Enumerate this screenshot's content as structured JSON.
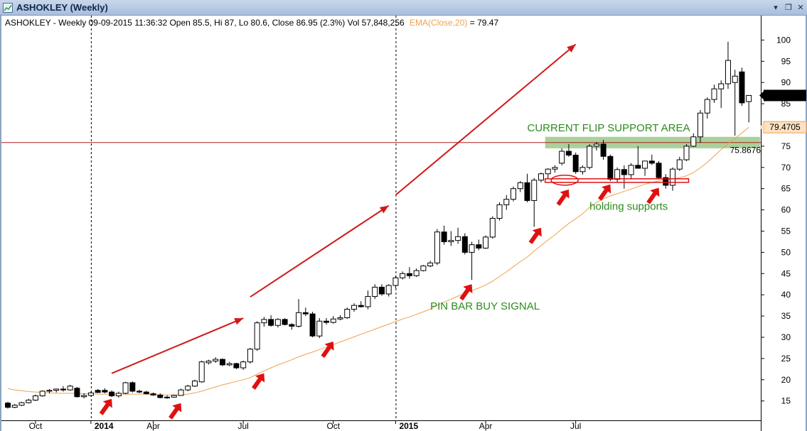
{
  "window": {
    "title": "ASHOKLEY (Weekly)"
  },
  "info_line": {
    "text": "ASHOKLEY - Weekly 09-09-2015 11:36:32 Open 85.5, Hi 87, Lo 80.6, Close 86.95 (2.3%) Vol 57,848,256",
    "ema_label": "EMA(Close,20)",
    "ema_value": " = 79.47"
  },
  "colors": {
    "up_candle": "#ffffff",
    "down_candle": "#000000",
    "ema": "#f0a050",
    "arrows": "#e01010",
    "trend_lines": "#d01818",
    "resistance_line": "#b02020",
    "support_zone": "#8fc07a",
    "annotation_text": "#2e8b1f"
  },
  "chart_data": {
    "type": "candlestick",
    "title": "ASHOKLEY (Weekly)",
    "ylim": [
      10,
      104
    ],
    "y_ticks": [
      15,
      20,
      25,
      30,
      35,
      40,
      45,
      50,
      55,
      60,
      65,
      70,
      75,
      80,
      85,
      90,
      95,
      100
    ],
    "x_ticks": [
      {
        "label": "Oct",
        "week": 4
      },
      {
        "label": "2014",
        "week": 12,
        "bold": true
      },
      {
        "label": "Apr",
        "week": 21
      },
      {
        "label": "Jul",
        "week": 34
      },
      {
        "label": "Oct",
        "week": 47
      },
      {
        "label": "2015",
        "week": 56,
        "bold": true
      },
      {
        "label": "Apr",
        "week": 69
      },
      {
        "label": "Jul",
        "week": 82
      }
    ],
    "year_separators": [
      12,
      56
    ],
    "candles": [
      {
        "o": 14.5,
        "h": 14.8,
        "l": 13.2,
        "c": 13.5
      },
      {
        "o": 13.5,
        "h": 14.3,
        "l": 13.3,
        "c": 14.0
      },
      {
        "o": 14.0,
        "h": 14.8,
        "l": 13.8,
        "c": 14.6
      },
      {
        "o": 14.6,
        "h": 15.5,
        "l": 14.4,
        "c": 15.2
      },
      {
        "o": 15.2,
        "h": 16.5,
        "l": 15.0,
        "c": 16.2
      },
      {
        "o": 16.2,
        "h": 17.5,
        "l": 16.0,
        "c": 17.3
      },
      {
        "o": 17.3,
        "h": 17.8,
        "l": 16.8,
        "c": 17.5
      },
      {
        "o": 17.5,
        "h": 17.9,
        "l": 17.0,
        "c": 17.8
      },
      {
        "o": 17.8,
        "h": 18.5,
        "l": 17.2,
        "c": 17.6
      },
      {
        "o": 17.6,
        "h": 18.8,
        "l": 17.4,
        "c": 18.5
      },
      {
        "o": 18.0,
        "h": 18.3,
        "l": 15.8,
        "c": 16.0
      },
      {
        "o": 16.0,
        "h": 16.8,
        "l": 15.6,
        "c": 16.3
      },
      {
        "o": 16.3,
        "h": 17.2,
        "l": 16.0,
        "c": 16.9
      },
      {
        "o": 17.5,
        "h": 17.8,
        "l": 16.9,
        "c": 17.0
      },
      {
        "o": 17.5,
        "h": 18.0,
        "l": 16.8,
        "c": 17.1
      },
      {
        "o": 17.1,
        "h": 17.5,
        "l": 15.9,
        "c": 16.2
      },
      {
        "o": 16.2,
        "h": 17.2,
        "l": 15.8,
        "c": 16.8
      },
      {
        "o": 16.8,
        "h": 19.5,
        "l": 16.6,
        "c": 19.3
      },
      {
        "o": 19.3,
        "h": 19.6,
        "l": 17.0,
        "c": 17.3
      },
      {
        "o": 17.3,
        "h": 17.6,
        "l": 16.8,
        "c": 17.1
      },
      {
        "o": 17.1,
        "h": 17.4,
        "l": 16.5,
        "c": 16.7
      },
      {
        "o": 16.7,
        "h": 17.0,
        "l": 16.2,
        "c": 16.4
      },
      {
        "o": 16.4,
        "h": 16.8,
        "l": 15.6,
        "c": 15.8
      },
      {
        "o": 15.8,
        "h": 16.3,
        "l": 15.5,
        "c": 15.9
      },
      {
        "o": 15.9,
        "h": 16.5,
        "l": 15.8,
        "c": 16.3
      },
      {
        "o": 16.3,
        "h": 17.9,
        "l": 16.2,
        "c": 17.6
      },
      {
        "o": 17.6,
        "h": 18.8,
        "l": 17.3,
        "c": 18.5
      },
      {
        "o": 18.5,
        "h": 20.0,
        "l": 18.3,
        "c": 19.7
      },
      {
        "o": 19.5,
        "h": 24.5,
        "l": 19.3,
        "c": 24.2
      },
      {
        "o": 24.0,
        "h": 24.7,
        "l": 23.6,
        "c": 24.4
      },
      {
        "o": 24.4,
        "h": 25.3,
        "l": 24.0,
        "c": 24.8
      },
      {
        "o": 24.8,
        "h": 25.0,
        "l": 23.2,
        "c": 23.5
      },
      {
        "o": 23.5,
        "h": 24.2,
        "l": 23.2,
        "c": 23.8
      },
      {
        "o": 23.8,
        "h": 24.0,
        "l": 22.5,
        "c": 22.8
      },
      {
        "o": 22.8,
        "h": 24.5,
        "l": 22.3,
        "c": 24.2
      },
      {
        "o": 24.2,
        "h": 27.5,
        "l": 23.8,
        "c": 27.2
      },
      {
        "o": 27.2,
        "h": 33.8,
        "l": 26.8,
        "c": 33.4
      },
      {
        "o": 33.4,
        "h": 34.8,
        "l": 32.5,
        "c": 34.2
      },
      {
        "o": 34.2,
        "h": 35.2,
        "l": 32.5,
        "c": 32.8
      },
      {
        "o": 32.8,
        "h": 34.5,
        "l": 32.3,
        "c": 34.2
      },
      {
        "o": 34.2,
        "h": 34.5,
        "l": 32.8,
        "c": 33.0
      },
      {
        "o": 33.0,
        "h": 33.3,
        "l": 31.8,
        "c": 32.6
      },
      {
        "o": 32.6,
        "h": 39.0,
        "l": 32.3,
        "c": 35.8
      },
      {
        "o": 35.8,
        "h": 37.0,
        "l": 35.0,
        "c": 35.5
      },
      {
        "o": 35.5,
        "h": 36.0,
        "l": 30.0,
        "c": 30.3
      },
      {
        "o": 30.3,
        "h": 34.5,
        "l": 29.8,
        "c": 33.8
      },
      {
        "o": 33.8,
        "h": 34.5,
        "l": 33.0,
        "c": 33.5
      },
      {
        "o": 33.5,
        "h": 35.0,
        "l": 33.2,
        "c": 34.3
      },
      {
        "o": 34.3,
        "h": 35.2,
        "l": 34.0,
        "c": 34.6
      },
      {
        "o": 34.6,
        "h": 37.0,
        "l": 34.3,
        "c": 36.6
      },
      {
        "o": 36.6,
        "h": 38.0,
        "l": 36.0,
        "c": 37.5
      },
      {
        "o": 37.5,
        "h": 38.5,
        "l": 37.0,
        "c": 37.2
      },
      {
        "o": 37.2,
        "h": 41.0,
        "l": 36.6,
        "c": 39.6
      },
      {
        "o": 39.6,
        "h": 42.5,
        "l": 39.0,
        "c": 41.8
      },
      {
        "o": 41.8,
        "h": 42.5,
        "l": 39.8,
        "c": 40.2
      },
      {
        "o": 40.2,
        "h": 42.5,
        "l": 39.6,
        "c": 42.2
      },
      {
        "o": 42.2,
        "h": 44.5,
        "l": 41.5,
        "c": 44.0
      },
      {
        "o": 44.0,
        "h": 45.5,
        "l": 43.6,
        "c": 45.0
      },
      {
        "o": 45.0,
        "h": 46.5,
        "l": 43.8,
        "c": 44.5
      },
      {
        "o": 44.5,
        "h": 46.2,
        "l": 44.2,
        "c": 45.7
      },
      {
        "o": 45.7,
        "h": 47.0,
        "l": 45.5,
        "c": 46.8
      },
      {
        "o": 46.8,
        "h": 48.0,
        "l": 46.5,
        "c": 47.5
      },
      {
        "o": 47.5,
        "h": 55.5,
        "l": 47.0,
        "c": 54.8
      },
      {
        "o": 54.8,
        "h": 56.3,
        "l": 51.8,
        "c": 52.5
      },
      {
        "o": 52.5,
        "h": 55.0,
        "l": 51.5,
        "c": 52.8
      },
      {
        "o": 52.8,
        "h": 55.8,
        "l": 52.0,
        "c": 53.7
      },
      {
        "o": 53.7,
        "h": 54.5,
        "l": 49.5,
        "c": 50.0
      },
      {
        "o": 50.0,
        "h": 52.5,
        "l": 43.5,
        "c": 51.8
      },
      {
        "o": 51.8,
        "h": 53.0,
        "l": 50.5,
        "c": 51.0
      },
      {
        "o": 51.0,
        "h": 54.0,
        "l": 50.8,
        "c": 53.6
      },
      {
        "o": 53.6,
        "h": 58.5,
        "l": 53.2,
        "c": 58.0
      },
      {
        "o": 58.0,
        "h": 61.8,
        "l": 57.5,
        "c": 61.2
      },
      {
        "o": 61.2,
        "h": 63.5,
        "l": 60.0,
        "c": 62.5
      },
      {
        "o": 62.5,
        "h": 65.5,
        "l": 62.0,
        "c": 65.0
      },
      {
        "o": 65.0,
        "h": 66.8,
        "l": 64.2,
        "c": 66.4
      },
      {
        "o": 66.4,
        "h": 68.5,
        "l": 61.8,
        "c": 62.2
      },
      {
        "o": 62.2,
        "h": 67.5,
        "l": 56.0,
        "c": 67.0
      },
      {
        "o": 67.0,
        "h": 68.8,
        "l": 66.5,
        "c": 68.5
      },
      {
        "o": 68.5,
        "h": 69.8,
        "l": 67.2,
        "c": 69.6
      },
      {
        "o": 69.6,
        "h": 70.5,
        "l": 68.8,
        "c": 70.0
      },
      {
        "o": 71.0,
        "h": 74.5,
        "l": 70.5,
        "c": 73.8
      },
      {
        "o": 73.8,
        "h": 75.5,
        "l": 72.5,
        "c": 72.9
      },
      {
        "o": 72.9,
        "h": 73.5,
        "l": 68.5,
        "c": 69.0
      },
      {
        "o": 69.0,
        "h": 70.5,
        "l": 68.3,
        "c": 70.0
      },
      {
        "o": 70.0,
        "h": 75.5,
        "l": 69.5,
        "c": 75.0
      },
      {
        "o": 75.0,
        "h": 76.0,
        "l": 74.0,
        "c": 75.5
      },
      {
        "o": 75.5,
        "h": 76.5,
        "l": 71.8,
        "c": 72.6
      },
      {
        "o": 72.6,
        "h": 73.0,
        "l": 66.8,
        "c": 67.2
      },
      {
        "o": 67.2,
        "h": 70.0,
        "l": 66.5,
        "c": 69.5
      },
      {
        "o": 69.5,
        "h": 70.5,
        "l": 65.0,
        "c": 68.3
      },
      {
        "o": 68.3,
        "h": 71.0,
        "l": 67.2,
        "c": 70.5
      },
      {
        "o": 70.5,
        "h": 75.0,
        "l": 70.0,
        "c": 69.8
      },
      {
        "o": 69.8,
        "h": 71.0,
        "l": 68.0,
        "c": 71.5
      },
      {
        "o": 71.5,
        "h": 73.0,
        "l": 70.6,
        "c": 71.0
      },
      {
        "o": 71.0,
        "h": 71.5,
        "l": 67.2,
        "c": 67.6
      },
      {
        "o": 67.6,
        "h": 68.4,
        "l": 65.0,
        "c": 65.8
      },
      {
        "o": 65.8,
        "h": 70.0,
        "l": 64.5,
        "c": 69.6
      },
      {
        "o": 69.6,
        "h": 72.5,
        "l": 69.2,
        "c": 71.8
      },
      {
        "o": 71.8,
        "h": 75.5,
        "l": 71.5,
        "c": 75.0
      },
      {
        "o": 75.0,
        "h": 78.0,
        "l": 74.8,
        "c": 77.2
      },
      {
        "o": 77.2,
        "h": 83.5,
        "l": 75.8,
        "c": 82.8
      },
      {
        "o": 82.8,
        "h": 86.5,
        "l": 81.5,
        "c": 86.0
      },
      {
        "o": 86.0,
        "h": 89.5,
        "l": 85.2,
        "c": 88.5
      },
      {
        "o": 88.5,
        "h": 90.5,
        "l": 84.0,
        "c": 89.7
      },
      {
        "o": 89.7,
        "h": 99.6,
        "l": 88.5,
        "c": 95.2
      },
      {
        "o": 90.0,
        "h": 93.0,
        "l": 77.5,
        "c": 91.5
      },
      {
        "o": 92.5,
        "h": 93.5,
        "l": 84.5,
        "c": 85.2
      },
      {
        "o": 85.5,
        "h": 87.0,
        "l": 80.6,
        "c": 86.95
      }
    ],
    "ema": {
      "name": "EMA(Close,20)",
      "values": [
        17.9,
        17.6,
        17.4,
        17.2,
        17.1,
        17.0,
        16.9,
        16.8,
        16.8,
        16.8,
        16.8,
        16.7,
        16.7,
        16.6,
        16.6,
        16.6,
        16.6,
        16.6,
        16.6,
        16.6,
        16.6,
        16.5,
        16.4,
        16.4,
        16.4,
        16.4,
        16.6,
        16.9,
        17.3,
        17.8,
        18.3,
        18.8,
        19.2,
        19.6,
        20.0,
        20.5,
        21.3,
        22.1,
        22.8,
        23.5,
        24.1,
        24.7,
        25.4,
        26.0,
        26.5,
        27.1,
        27.7,
        28.3,
        28.9,
        29.5,
        30.1,
        30.7,
        31.3,
        31.9,
        32.5,
        33.1,
        33.7,
        34.3,
        34.8,
        35.4,
        36.0,
        36.6,
        37.5,
        38.3,
        39.0,
        39.7,
        40.3,
        41.0,
        41.6,
        42.3,
        43.2,
        44.3,
        45.4,
        46.6,
        47.8,
        48.9,
        50.3,
        51.6,
        52.9,
        54.1,
        55.5,
        56.8,
        57.9,
        59.1,
        60.6,
        61.7,
        62.6,
        63.3,
        63.8,
        64.4,
        64.9,
        65.5,
        66.0,
        66.5,
        66.8,
        67.1,
        67.3,
        67.6,
        68.0,
        68.8,
        69.9,
        71.2,
        72.7,
        74.2,
        75.6,
        76.8,
        78.1,
        79.47
      ]
    },
    "resistance_level": {
      "value": 75.8676,
      "label": "75.8676"
    },
    "ema_last_label": "79.4705",
    "last_price_label": "86.95",
    "support_zone": {
      "low": 74.5,
      "high": 77.2,
      "from_week": 78,
      "to_week": 108
    },
    "support_line": {
      "value": 66.9,
      "from_week": 78,
      "to_week": 98
    },
    "trend_lines": [
      {
        "from": {
          "week": 15,
          "price": 21.5
        },
        "to": {
          "week": 34,
          "price": 34.5
        }
      },
      {
        "from": {
          "week": 35,
          "price": 39.5
        },
        "to": {
          "week": 55,
          "price": 61.0
        }
      },
      {
        "from": {
          "week": 56,
          "price": 63.5
        },
        "to": {
          "week": 82,
          "price": 99.0
        }
      }
    ],
    "signal_arrows": [
      {
        "week": 15,
        "price": 15.5
      },
      {
        "week": 25,
        "price": 14.5
      },
      {
        "week": 37,
        "price": 21.5
      },
      {
        "week": 47,
        "price": 29.0
      },
      {
        "week": 67,
        "price": 42.5
      },
      {
        "week": 77,
        "price": 55.8
      },
      {
        "week": 81,
        "price": 64.8
      },
      {
        "week": 87,
        "price": 66.0
      },
      {
        "week": 94,
        "price": 65.2
      }
    ],
    "highlight_ellipse": {
      "week": 80,
      "price": 67.0
    },
    "annotations": [
      {
        "text": "CURRENT FLIP SUPPORT AREA",
        "week": 75,
        "price": 78.5
      },
      {
        "text": "holding supports",
        "week": 84,
        "price": 60.0
      },
      {
        "text": "PIN BAR BUY SIGNAL",
        "week": 61,
        "price": 36.5
      }
    ]
  }
}
